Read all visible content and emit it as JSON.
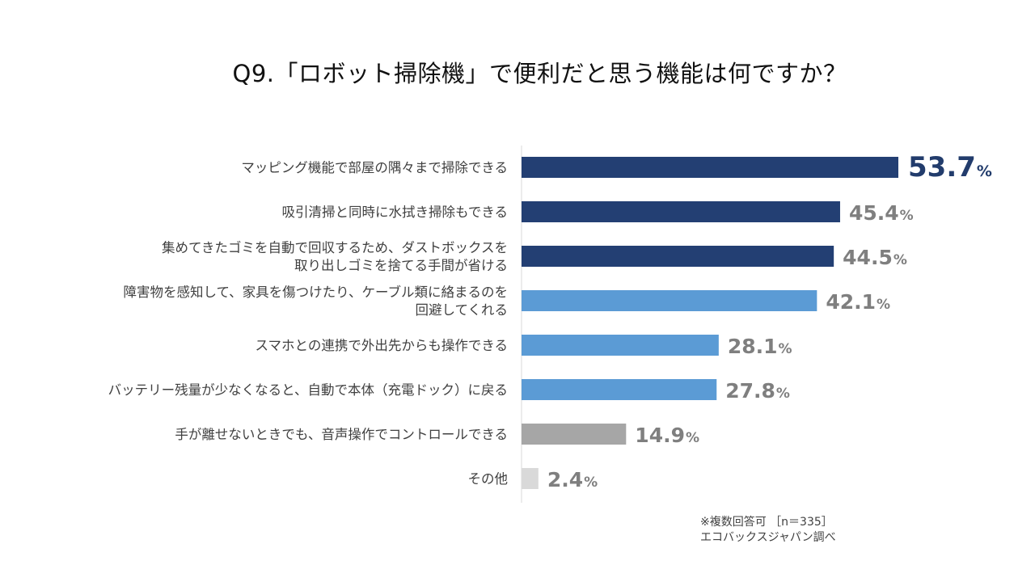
{
  "chart_data": {
    "type": "bar",
    "orientation": "horizontal",
    "title": "Q9.「ロボット掃除機」で便利だと思う機能は何ですか？",
    "xlabel": "",
    "ylabel": "",
    "xlim": [
      0,
      60
    ],
    "unit": "%",
    "grid": false,
    "categories": [
      [
        "マッピング機能で部屋の隅々まで掃除できる"
      ],
      [
        "吸引清掃と同時に水拭き掃除もできる"
      ],
      [
        "集めてきたゴミを自動で回収するため、ダストボックスを",
        "取り出しゴミを捨てる手間が省ける"
      ],
      [
        "障害物を感知して、家具を傷つけたり、ケーブル類に絡まるのを",
        "回避してくれる"
      ],
      [
        "スマホとの連携で外出先からも操作できる"
      ],
      [
        "バッテリー残量が少なくなると、自動で本体（充電ドック）に戻る"
      ],
      [
        "手が離せないときでも、音声操作でコントロールできる"
      ],
      [
        "その他"
      ]
    ],
    "values": [
      53.7,
      45.4,
      44.5,
      42.1,
      28.1,
      27.8,
      14.9,
      2.4
    ],
    "value_labels": [
      "53.7",
      "45.4",
      "44.5",
      "42.1",
      "28.1",
      "27.8",
      "14.9",
      "2.4"
    ],
    "colors": [
      "#233f73",
      "#233f73",
      "#233f73",
      "#5b9bd5",
      "#5b9bd5",
      "#5b9bd5",
      "#a6a6a6",
      "#d9d9d9"
    ]
  },
  "footnote": {
    "line1": "※複数回答可 ［n＝335］",
    "line2": "エコバックスジャパン調べ"
  }
}
